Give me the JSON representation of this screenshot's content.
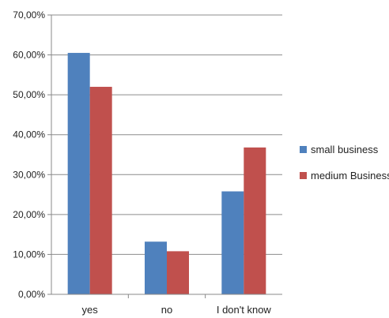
{
  "chart_data": {
    "type": "bar",
    "title": "",
    "xlabel": "",
    "ylabel": "",
    "categories": [
      "yes",
      "no",
      "I don't know"
    ],
    "series": [
      {
        "name": "small business",
        "values": [
          60.5,
          13.2,
          25.8
        ],
        "color": "#4f81bd"
      },
      {
        "name": "medium Business",
        "values": [
          52.0,
          10.8,
          36.8
        ],
        "color": "#c0504d"
      }
    ],
    "ylim": [
      0,
      70
    ],
    "yticks": [
      "0,00%",
      "10,00%",
      "20,00%",
      "30,00%",
      "40,00%",
      "50,00%",
      "60,00%",
      "70,00%"
    ],
    "grid": true,
    "legend": "right"
  }
}
